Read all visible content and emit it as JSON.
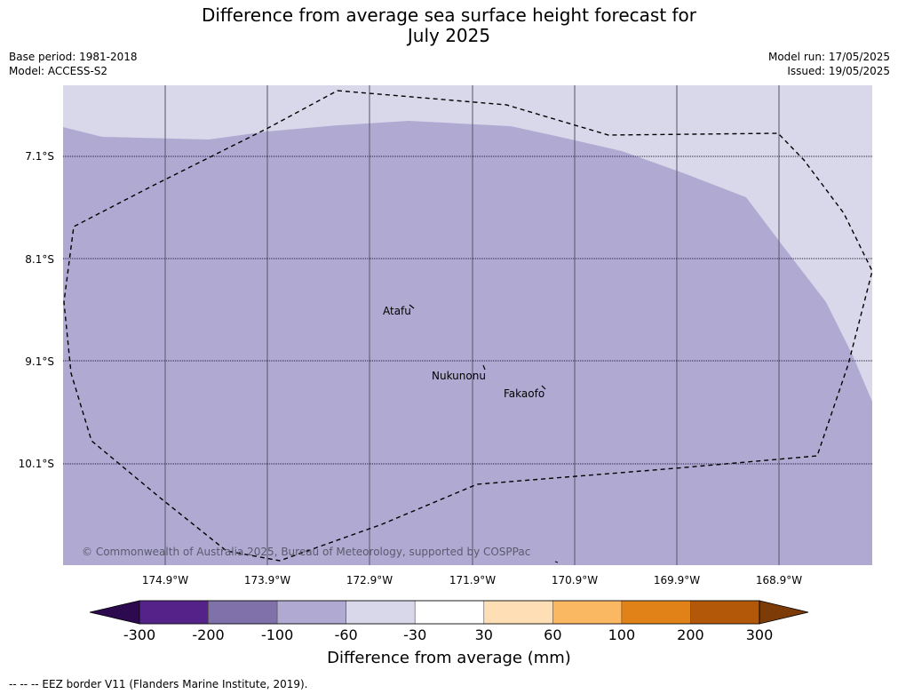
{
  "title_line1": "Difference from average sea surface height forecast for",
  "title_line2": "July 2025",
  "header": {
    "base_period": "Base period: 1981-2018",
    "model": "Model: ACCESS-S2",
    "model_run": "Model run: 17/05/2025",
    "issued": "Issued: 19/05/2025"
  },
  "map": {
    "lat_labels": [
      "7.1°S",
      "8.1°S",
      "9.1°S",
      "10.1°S"
    ],
    "lon_labels": [
      "174.9°W",
      "173.9°W",
      "172.9°W",
      "171.9°W",
      "170.9°W",
      "169.9°W",
      "168.9°W"
    ],
    "places": {
      "atafu": "Atafu",
      "nukunonu": "Nukunonu",
      "fakaofo": "Fakaofo"
    },
    "copyright": "© Commonwealth of Australia 2025, Bureau of Meteorology, supported by COSPPac",
    "field_colors": {
      "light": "#d8d8ea",
      "main": "#b0aad2"
    }
  },
  "colorbar": {
    "ticks": [
      "-300",
      "-200",
      "-100",
      "-60",
      "-30",
      "30",
      "60",
      "100",
      "200",
      "300"
    ],
    "colors": [
      "#2d0a4f",
      "#55228a",
      "#8071ab",
      "#b0aad2",
      "#d8d8ea",
      "#ffffff",
      "#fedfb5",
      "#fbb862",
      "#e08218",
      "#b35808",
      "#7d3b08"
    ],
    "title": "Difference from average (mm)"
  },
  "footnote": "--  --  -- EEZ border V11 (Flanders Marine Institute, 2019)."
}
